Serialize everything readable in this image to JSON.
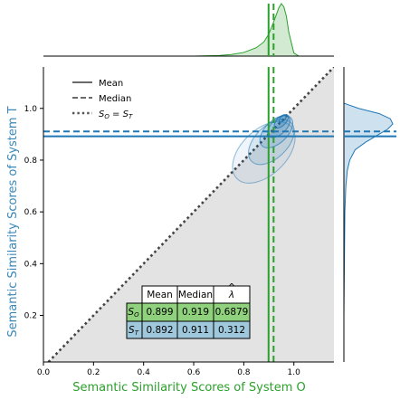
{
  "colors": {
    "system_o": "#2ca02c",
    "system_t": "#1f77b4",
    "system_t_label": "#3a87b8",
    "shade": "#e3e3e3",
    "diagonal": "#444444",
    "row_o_fill": "#8fd17c",
    "row_t_fill": "#a0c8dc"
  },
  "chart_data": {
    "type": "scatter",
    "subtype": "joint kde plot with marginal densities",
    "xlabel": "Semantic Similarity Scores of System O",
    "ylabel": "Semantic Similarity Scores of System T",
    "xlim": [
      0.0,
      1.16
    ],
    "ylim": [
      0.02,
      1.16
    ],
    "xticks": [
      "0.0",
      "0.2",
      "0.4",
      "0.6",
      "0.8",
      "1.0"
    ],
    "yticks": [
      "0.2",
      "0.4",
      "0.6",
      "0.8",
      "1.0"
    ],
    "shaded_region": "area below the diagonal S_O = S_T",
    "legend": {
      "placement": "upper-left",
      "entries": [
        {
          "label": "Mean",
          "style": "solid"
        },
        {
          "label": "Median",
          "style": "dashed"
        },
        {
          "label": "S_O = S_T",
          "display": "S",
          "sub_o": "O",
          "eq": " = ",
          "sub_t": "T",
          "style": "dotted"
        }
      ]
    },
    "reference_lines": {
      "system_o": {
        "mean": 0.899,
        "median": 0.919
      },
      "system_t": {
        "mean": 0.892,
        "median": 0.911
      }
    },
    "kde_levels": [
      {
        "width": 0.3,
        "height": 0.18,
        "angle": 44,
        "x": 0.88,
        "y": 0.83
      },
      {
        "width": 0.22,
        "height": 0.13,
        "angle": 44,
        "x": 0.91,
        "y": 0.87
      },
      {
        "width": 0.16,
        "height": 0.09,
        "angle": 44,
        "x": 0.93,
        "y": 0.91
      },
      {
        "width": 0.11,
        "height": 0.06,
        "angle": 44,
        "x": 0.94,
        "y": 0.93
      },
      {
        "width": 0.07,
        "height": 0.035,
        "angle": 44,
        "x": 0.95,
        "y": 0.95
      },
      {
        "width": 0.035,
        "height": 0.018,
        "angle": 44,
        "x": 0.955,
        "y": 0.96
      }
    ],
    "marginal_x_density": {
      "x": [
        0.6,
        0.7,
        0.75,
        0.8,
        0.85,
        0.88,
        0.9,
        0.92,
        0.94,
        0.95,
        0.96,
        0.97,
        0.98,
        1.0,
        1.02
      ],
      "density": [
        0.0,
        0.01,
        0.03,
        0.07,
        0.16,
        0.27,
        0.42,
        0.66,
        0.92,
        1.0,
        0.94,
        0.76,
        0.45,
        0.06,
        0.0
      ]
    },
    "marginal_y_density": {
      "y": [
        0.05,
        0.2,
        0.4,
        0.6,
        0.7,
        0.76,
        0.8,
        0.84,
        0.87,
        0.9,
        0.92,
        0.94,
        0.96,
        0.98,
        1.0,
        1.02
      ],
      "density": [
        0.0,
        0.0,
        0.01,
        0.02,
        0.04,
        0.07,
        0.12,
        0.23,
        0.45,
        0.72,
        0.9,
        1.0,
        0.95,
        0.72,
        0.3,
        0.0
      ]
    },
    "table": {
      "columns": [
        "Mean",
        "Median",
        "λ"
      ],
      "column_hat": [
        false,
        false,
        true
      ],
      "rows": [
        {
          "label_main": "S",
          "label_sub": "O",
          "values": [
            "0.899",
            "0.919",
            "0.6879"
          ]
        },
        {
          "label_main": "S",
          "label_sub": "T",
          "values": [
            "0.892",
            "0.911",
            "0.312"
          ]
        }
      ]
    }
  }
}
